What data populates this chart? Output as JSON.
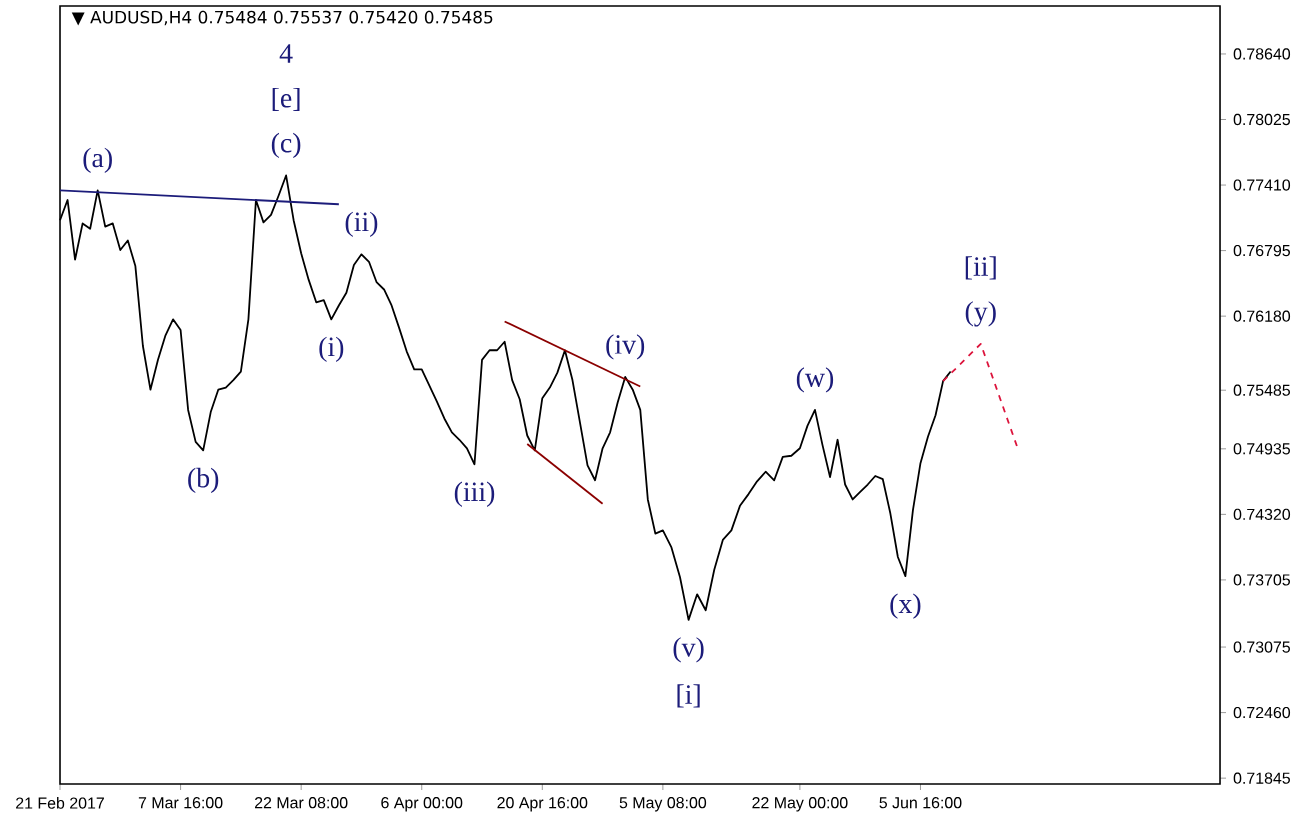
{
  "chart_data": {
    "type": "line",
    "title": "▼ AUDUSD,H4  0.75484 0.75537 0.75420 0.75485",
    "xlim": [
      "2017-02-21T00:00",
      "2017-07-12T02:30"
    ],
    "ylim": [
      0.7179,
      0.7909
    ],
    "xticks": [
      {
        "value": "2017-02-21T00:00",
        "label": "21 Feb 2017"
      },
      {
        "value": "2017-03-07T16:00",
        "label": "7 Mar 16:00"
      },
      {
        "value": "2017-03-22T08:00",
        "label": "22 Mar 08:00"
      },
      {
        "value": "2017-04-06T00:00",
        "label": "6 Apr 00:00"
      },
      {
        "value": "2017-04-20T16:00",
        "label": "20 Apr 16:00"
      },
      {
        "value": "2017-05-05T08:00",
        "label": "5 May 08:00"
      },
      {
        "value": "2017-05-22T00:00",
        "label": "22 May 00:00"
      },
      {
        "value": "2017-06-05T16:00",
        "label": "5 Jun 16:00"
      }
    ],
    "yticks": [
      {
        "value": 0.7864,
        "label": "0.78640"
      },
      {
        "value": 0.78025,
        "label": "0.78025"
      },
      {
        "value": 0.7741,
        "label": "0.77410"
      },
      {
        "value": 0.76795,
        "label": "0.76795"
      },
      {
        "value": 0.7618,
        "label": "0.76180"
      },
      {
        "value": 0.75485,
        "label": "0.75485"
      },
      {
        "value": 0.74935,
        "label": "0.74935"
      },
      {
        "value": 0.7432,
        "label": "0.74320"
      },
      {
        "value": 0.73705,
        "label": "0.73705"
      },
      {
        "value": 0.73075,
        "label": "0.73075"
      },
      {
        "value": 0.7246,
        "label": "0.72460"
      },
      {
        "value": 0.71845,
        "label": "0.71845"
      }
    ],
    "grid": false,
    "series": [
      {
        "color": "#000000",
        "x": [
          "2017-02-21T00:00",
          "2017-02-21T22:00",
          "2017-02-22T20:00",
          "2017-02-23T18:00",
          "2017-02-24T16:00",
          "2017-02-25T14:00",
          "2017-02-26T12:00",
          "2017-02-27T10:00",
          "2017-02-28T08:00",
          "2017-03-01T06:00",
          "2017-03-02T04:00",
          "2017-03-03T02:00",
          "2017-03-04T00:00",
          "2017-03-04T22:00",
          "2017-03-05T20:00",
          "2017-03-06T18:00",
          "2017-03-07T16:00",
          "2017-03-08T14:00",
          "2017-03-09T12:00",
          "2017-03-10T10:00",
          "2017-03-11T08:00",
          "2017-03-12T06:00",
          "2017-03-13T04:00",
          "2017-03-14T02:00",
          "2017-03-15T00:00",
          "2017-03-15T22:00",
          "2017-03-16T20:00",
          "2017-03-17T18:00",
          "2017-03-18T16:00",
          "2017-03-19T14:00",
          "2017-03-20T12:00",
          "2017-03-21T10:00",
          "2017-03-22T08:00",
          "2017-03-23T06:00",
          "2017-03-24T04:00",
          "2017-03-25T02:00",
          "2017-03-26T00:00",
          "2017-03-26T22:00",
          "2017-03-27T20:00",
          "2017-03-28T18:00",
          "2017-03-29T16:00",
          "2017-03-30T14:00",
          "2017-03-31T12:00",
          "2017-04-01T10:00",
          "2017-04-02T08:00",
          "2017-04-03T06:00",
          "2017-04-04T04:00",
          "2017-04-05T02:00",
          "2017-04-06T00:00",
          "2017-04-06T22:00",
          "2017-04-07T20:00",
          "2017-04-08T18:00",
          "2017-04-09T16:00",
          "2017-04-10T14:00",
          "2017-04-11T12:00",
          "2017-04-12T10:00",
          "2017-04-13T08:00",
          "2017-04-14T06:00",
          "2017-04-15T04:00",
          "2017-04-16T02:00",
          "2017-04-17T00:00",
          "2017-04-17T22:00",
          "2017-04-18T20:00",
          "2017-04-19T18:00",
          "2017-04-20T16:00",
          "2017-04-21T14:00",
          "2017-04-22T12:00",
          "2017-04-23T10:00",
          "2017-04-24T08:00",
          "2017-04-25T06:00",
          "2017-04-26T04:00",
          "2017-04-27T02:00",
          "2017-04-28T00:00",
          "2017-04-28T22:00",
          "2017-04-29T20:00",
          "2017-04-30T18:00",
          "2017-05-01T16:00",
          "2017-05-02T14:00",
          "2017-05-03T12:00",
          "2017-05-04T10:00",
          "2017-05-05T08:00",
          "2017-05-06T09:00",
          "2017-05-07T10:00",
          "2017-05-08T11:00",
          "2017-05-09T12:00",
          "2017-05-10T13:00",
          "2017-05-11T14:00",
          "2017-05-12T15:00",
          "2017-05-13T16:00",
          "2017-05-14T17:00",
          "2017-05-15T18:00",
          "2017-05-16T19:00",
          "2017-05-17T20:00",
          "2017-05-18T21:00",
          "2017-05-19T22:00",
          "2017-05-20T23:00",
          "2017-05-22T00:00",
          "2017-05-22T22:00",
          "2017-05-23T20:00",
          "2017-05-24T18:00",
          "2017-05-25T16:00",
          "2017-05-26T14:00",
          "2017-05-27T12:00",
          "2017-05-28T10:00",
          "2017-05-29T08:00",
          "2017-05-30T06:00",
          "2017-05-31T04:00",
          "2017-06-01T02:00",
          "2017-06-02T00:00",
          "2017-06-02T22:00",
          "2017-06-03T20:00",
          "2017-06-04T18:00",
          "2017-06-05T16:00",
          "2017-06-06T14:00",
          "2017-06-07T12:00",
          "2017-06-08T10:00",
          "2017-06-09T08:00"
        ],
        "values": [
          0.7708,
          0.7727,
          0.7671,
          0.7705,
          0.77,
          0.7736,
          0.7702,
          0.7705,
          0.768,
          0.7689,
          0.7665,
          0.759,
          0.7549,
          0.7577,
          0.76,
          0.7615,
          0.7605,
          0.753,
          0.75,
          0.7492,
          0.7528,
          0.7549,
          0.7551,
          0.7558,
          0.7566,
          0.7615,
          0.7727,
          0.7706,
          0.7713,
          0.7731,
          0.775,
          0.7708,
          0.7677,
          0.7652,
          0.7631,
          0.7633,
          0.7615,
          0.7628,
          0.764,
          0.7666,
          0.7676,
          0.7669,
          0.765,
          0.7643,
          0.7628,
          0.7607,
          0.7585,
          0.7568,
          0.7568,
          0.7553,
          0.7538,
          0.7522,
          0.7509,
          0.7502,
          0.7494,
          0.7479,
          0.7577,
          0.7586,
          0.7586,
          0.7594,
          0.7558,
          0.754,
          0.7506,
          0.7492,
          0.7541,
          0.7551,
          0.7565,
          0.7586,
          0.7558,
          0.7518,
          0.7478,
          0.7464,
          0.7494,
          0.7509,
          0.7537,
          0.7561,
          0.7549,
          0.753,
          0.7446,
          0.7414,
          0.7417,
          0.7401,
          0.7373,
          0.7333,
          0.7357,
          0.7342,
          0.738,
          0.7408,
          0.7417,
          0.744,
          0.7451,
          0.7463,
          0.7472,
          0.7464,
          0.7486,
          0.7487,
          0.7494,
          0.7515,
          0.753,
          0.7497,
          0.7467,
          0.7502,
          0.746,
          0.7446,
          0.7453,
          0.746,
          0.7468,
          0.7465,
          0.7433,
          0.7392,
          0.7374,
          0.7436,
          0.748,
          0.7505,
          0.7525,
          0.7557,
          0.7566
        ]
      },
      {
        "color": "#1c1c7a",
        "x": [
          "2017-02-21T00:00",
          "2017-03-26T22:00"
        ],
        "values": [
          0.7736,
          0.7723
        ]
      },
      {
        "color": "#8b0000",
        "x": [
          "2017-04-16T02:00",
          "2017-05-02T14:00"
        ],
        "values": [
          0.7613,
          0.7552
        ]
      },
      {
        "color": "#8b0000",
        "x": [
          "2017-04-18T20:00",
          "2017-04-28T00:00"
        ],
        "values": [
          0.7498,
          0.7442
        ]
      },
      {
        "color": "#dc143c",
        "line_style": "dashed",
        "x": [
          "2017-06-08T10:00",
          "2017-06-13T00:00",
          "2017-06-17T14:00"
        ],
        "values": [
          0.7557,
          0.7592,
          0.7492
        ]
      }
    ],
    "annotations": [
      {
        "text": "(c)",
        "x": "2017-03-20T12:00",
        "y": 0.775
      },
      "[e]",
      "4",
      {
        "text": "(a)",
        "x": "2017-02-25T14:00",
        "y": 0.7736
      },
      {
        "text": "(b)",
        "x": "2017-03-10T10:00",
        "y": 0.7492
      },
      {
        "text": "(i)",
        "x": "2017-03-26T00:00",
        "y": 0.7615
      },
      {
        "text": "(ii)",
        "x": "2017-03-29T16:00",
        "y": 0.7676
      },
      {
        "text": "(iii)",
        "x": "2017-04-12T10:00",
        "y": 0.7479
      },
      {
        "text": "(iv)",
        "x": "2017-04-30T18:00",
        "y": 0.7561
      },
      {
        "text": "(v)",
        "x": "2017-05-08T11:00",
        "y": 0.7333
      },
      "[i]",
      {
        "text": "(w)",
        "x": "2017-05-23T20:00",
        "y": 0.753
      },
      {
        "text": "(x)",
        "x": "2017-06-03T20:00",
        "y": 0.7374
      },
      {
        "text": "(y)",
        "x": "2017-06-13T00:00",
        "y": 0.7592
      },
      "[ii]"
    ]
  }
}
